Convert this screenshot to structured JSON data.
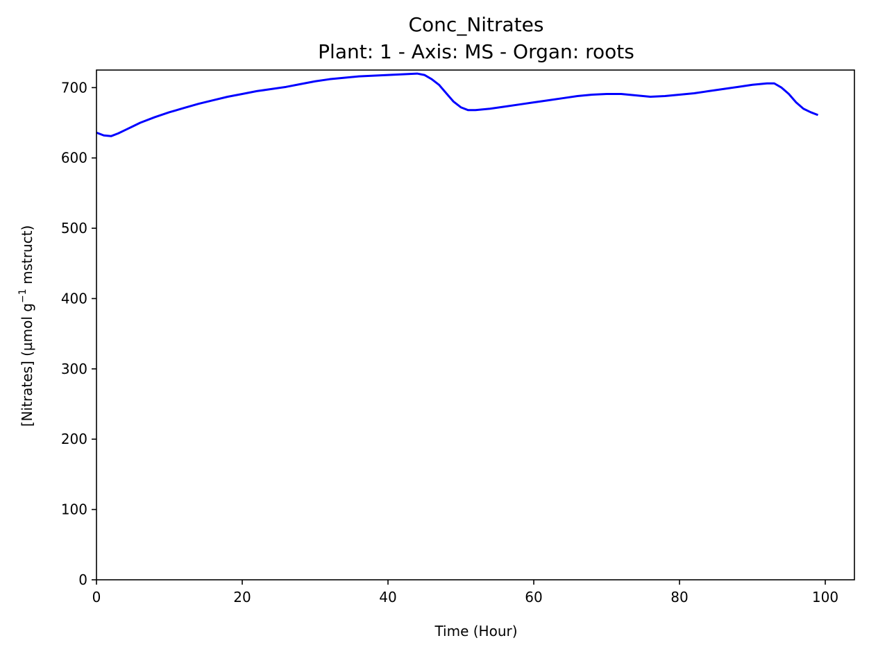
{
  "chart_data": {
    "type": "line",
    "title": "Conc_Nitrates",
    "subtitle": "Plant: 1 - Axis: MS - Organ: roots",
    "xlabel": "Time (Hour)",
    "ylabel_main": "[Nitrates] (µmol g",
    "ylabel_sup": "−1",
    "ylabel_tail": " mstruct)",
    "xlim": [
      0,
      104
    ],
    "ylim": [
      0,
      725
    ],
    "xticks": [
      "0",
      "20",
      "40",
      "60",
      "80",
      "100"
    ],
    "yticks": [
      "0",
      "100",
      "200",
      "300",
      "400",
      "500",
      "600",
      "700"
    ],
    "grid": false,
    "series": [
      {
        "color": "#0000ff",
        "x": [
          0,
          1,
          2,
          3,
          4,
          5,
          6,
          8,
          10,
          12,
          14,
          16,
          18,
          20,
          22,
          24,
          26,
          28,
          30,
          32,
          34,
          36,
          38,
          40,
          42,
          44,
          45,
          46,
          47,
          48,
          49,
          50,
          51,
          52,
          53,
          54,
          56,
          58,
          60,
          62,
          64,
          66,
          68,
          70,
          72,
          74,
          76,
          78,
          80,
          82,
          84,
          86,
          88,
          90,
          92,
          93,
          94,
          95,
          96,
          97,
          98,
          99
        ],
        "y": [
          636,
          632,
          631,
          635,
          640,
          645,
          650,
          658,
          665,
          671,
          677,
          682,
          687,
          691,
          695,
          698,
          701,
          705,
          709,
          712,
          714,
          716,
          717,
          718,
          719,
          720,
          718,
          712,
          704,
          692,
          680,
          672,
          668,
          668,
          669,
          670,
          673,
          676,
          679,
          682,
          685,
          688,
          690,
          691,
          691,
          689,
          687,
          688,
          690,
          692,
          695,
          698,
          701,
          704,
          706,
          706,
          700,
          691,
          679,
          670,
          665,
          661
        ]
      }
    ]
  }
}
